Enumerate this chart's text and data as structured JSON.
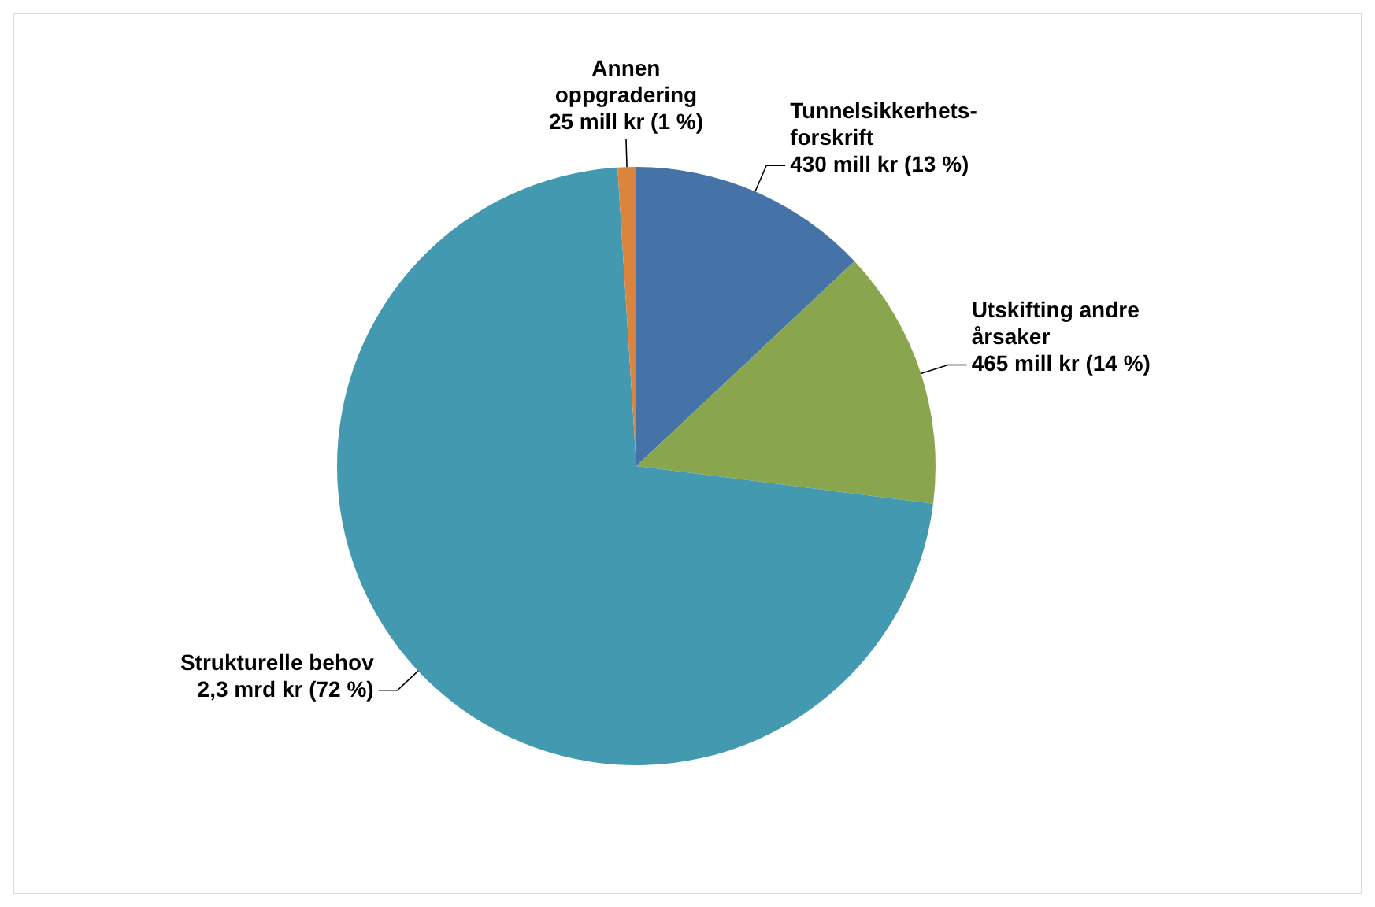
{
  "chart_data": {
    "type": "pie",
    "categories": [
      "Tunnelsikkerhets-forskrift",
      "Utskifting andre årsaker",
      "Strukturelle behov",
      "Annen oppgradering"
    ],
    "values": [
      13,
      14,
      72,
      1
    ],
    "colors": [
      "#4573a7",
      "#89a54e",
      "#4399b0",
      "#db843d"
    ],
    "value_labels": [
      "430 mill kr (13 %)",
      "465 mill kr (14 %)",
      "2,3 mrd kr (72 %)",
      "25 mill kr (1 %)"
    ],
    "legend": false
  }
}
